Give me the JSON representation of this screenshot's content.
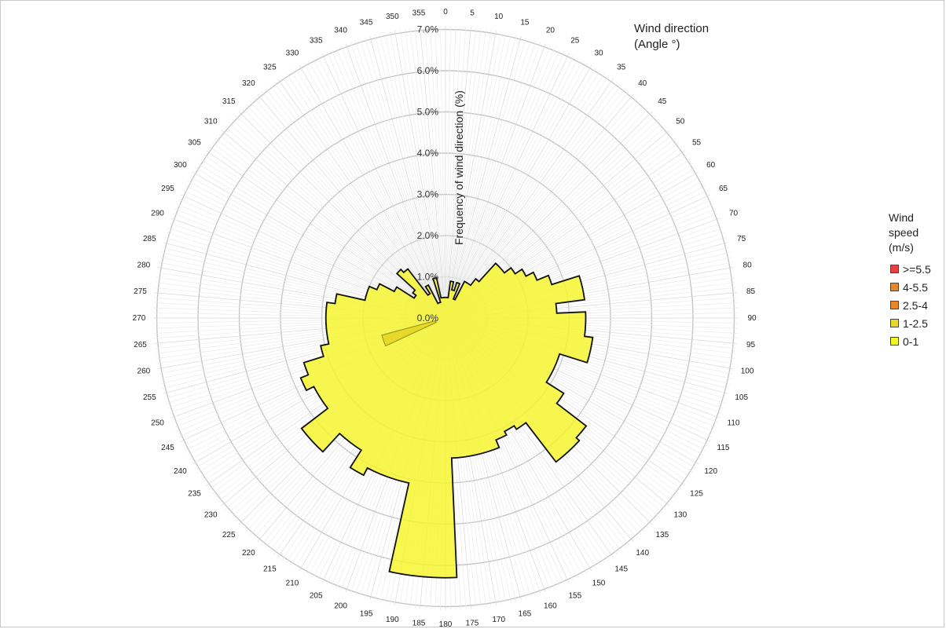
{
  "chart_data": {
    "type": "radar-area",
    "title": "",
    "angle_title_line1": "Wind direction",
    "angle_title_line2": "(Angle °)",
    "radial_label": "Frequency of wind direction (%)",
    "radial_ticks": [
      "0.0%",
      "1.0%",
      "2.0%",
      "3.0%",
      "4.0%",
      "5.0%",
      "6.0%",
      "7.0%"
    ],
    "radial_max": 7.0,
    "angle_step_deg": 5,
    "angle_labels": [
      "0",
      "5",
      "10",
      "15",
      "20",
      "25",
      "30",
      "35",
      "40",
      "45",
      "50",
      "55",
      "60",
      "65",
      "70",
      "75",
      "80",
      "85",
      "90",
      "95",
      "100",
      "105",
      "110",
      "115",
      "120",
      "125",
      "130",
      "135",
      "140",
      "145",
      "150",
      "155",
      "160",
      "165",
      "170",
      "175",
      "180",
      "185",
      "190",
      "195",
      "200",
      "205",
      "210",
      "215",
      "220",
      "225",
      "230",
      "235",
      "240",
      "245",
      "250",
      "255",
      "260",
      "265",
      "270",
      "275",
      "280",
      "285",
      "290",
      "295",
      "300",
      "305",
      "310",
      "315",
      "320",
      "325",
      "330",
      "335",
      "340",
      "345",
      "350",
      "355"
    ],
    "legend_title": "Wind speed (m/s)",
    "legend_position": "right",
    "series": [
      {
        "name": "0-1",
        "color": "#f5f52a",
        "values": [
          0.5,
          0.5,
          0.9,
          0.7,
          0.9,
          0.5,
          1.0,
          1.0,
          1.2,
          1.8,
          1.8,
          2.0,
          2.2,
          2.4,
          2.7,
          3.4,
          3.4,
          2.7,
          3.4,
          3.4,
          3.6,
          3.6,
          2.9,
          2.9,
          2.9,
          3.4,
          4.3,
          4.4,
          4.4,
          3.2,
          3.1,
          3.2,
          3.4,
          3.4,
          3.4,
          3.4,
          6.3,
          6.3,
          6.3,
          4.1,
          4.1,
          4.1,
          4.3,
          3.8,
          3.8,
          4.4,
          4.4,
          3.6,
          3.6,
          3.8,
          3.6,
          3.1,
          2.9,
          2.9,
          2.9,
          2.9,
          2.7,
          2.0,
          2.0,
          1.8,
          1.4,
          0.9,
          1.0,
          1.6,
          1.5,
          0.7,
          0.9,
          0.4,
          0.4,
          1.0,
          0.5,
          0.5
        ]
      },
      {
        "name": "1-2.5",
        "color": "#e8d82a",
        "values": [
          0,
          0,
          0,
          0,
          0,
          0,
          0,
          0,
          0,
          0,
          0,
          0,
          0,
          0,
          0,
          0,
          0,
          0,
          0,
          0,
          0,
          0,
          0,
          0,
          0,
          0,
          0,
          0,
          0,
          0,
          0,
          0,
          0,
          0,
          0,
          0,
          0,
          0,
          0,
          0,
          0,
          0,
          0,
          0,
          0,
          0,
          0,
          0,
          0,
          0,
          0,
          0,
          0,
          0,
          0,
          0,
          0,
          0,
          0,
          0,
          0,
          0,
          0,
          0,
          0,
          0,
          0,
          0,
          0,
          0,
          0,
          0
        ],
        "wedge": {
          "from_deg": 245,
          "to_deg": 255,
          "value": 1.6,
          "inner": 0.25
        }
      },
      {
        "name": "2.5-4",
        "color": "#e8862a",
        "values": []
      },
      {
        "name": "4-5.5",
        "color": "#e8862a",
        "values": []
      },
      {
        "name": ">=5.5",
        "color": "#e84040",
        "values": []
      }
    ],
    "legend_order": [
      ">=5.5",
      "4-5.5",
      "2.5-4",
      "1-2.5",
      "0-1"
    ]
  }
}
